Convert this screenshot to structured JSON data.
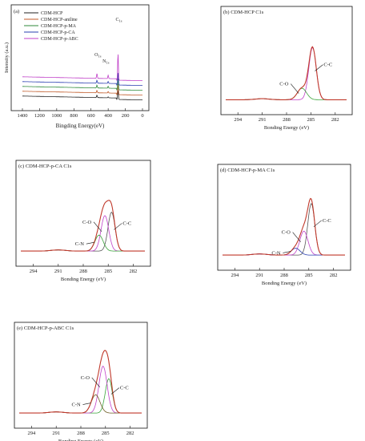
{
  "figure": {
    "chart_data": [
      {
        "type": "line",
        "panel_label": "(a)",
        "title": "",
        "xlabel": "Bingding Energy(eV)",
        "ylabel": "Intensity (a.u.)",
        "x_ticks": [
          "1400",
          "1200",
          "1000",
          "800",
          "600",
          "400",
          "200",
          "0"
        ],
        "xlim": [
          1400,
          0
        ],
        "x_reversed": true,
        "series": [
          {
            "name": "CDM-HCP",
            "color": "#222222",
            "baseline": 0.0,
            "peaks": [
              {
                "x": 285,
                "h": 0.2
              },
              {
                "x": 531,
                "h": 0.05
              },
              {
                "x": 400,
                "h": 0.02
              }
            ]
          },
          {
            "name": "CDM-HCP-aniline",
            "color": "#c05a28",
            "baseline": 0.1,
            "peaks": [
              {
                "x": 285,
                "h": 0.22
              },
              {
                "x": 531,
                "h": 0.05
              },
              {
                "x": 400,
                "h": 0.03
              }
            ]
          },
          {
            "name": "CDM-HCP-p-MA",
            "color": "#2f8a3a",
            "baseline": 0.2,
            "peaks": [
              {
                "x": 285,
                "h": 0.24
              },
              {
                "x": 531,
                "h": 0.06
              },
              {
                "x": 400,
                "h": 0.04
              }
            ]
          },
          {
            "name": "CDM-HCP-p-CA",
            "color": "#2a3fb0",
            "baseline": 0.3,
            "peaks": [
              {
                "x": 285,
                "h": 0.26
              },
              {
                "x": 531,
                "h": 0.06
              },
              {
                "x": 400,
                "h": 0.04
              }
            ]
          },
          {
            "name": "CDM-HCP-p-ABC",
            "color": "#c040c8",
            "baseline": 0.4,
            "peaks": [
              {
                "x": 285,
                "h": 0.55
              },
              {
                "x": 531,
                "h": 0.1
              },
              {
                "x": 400,
                "h": 0.07
              }
            ]
          }
        ],
        "annotations": [
          {
            "text": "C",
            "sub": "1s",
            "x": 285
          },
          {
            "text": "O",
            "sub": "1s",
            "x": 531
          },
          {
            "text": "N",
            "sub": "1s",
            "x": 400
          }
        ]
      },
      {
        "type": "line",
        "panel_label": "(b)",
        "title": "CDM-HCP  C1s",
        "xlabel": "Bonding Energy (eV)",
        "x_ticks": [
          "294",
          "291",
          "288",
          "285",
          "282"
        ],
        "xlim": [
          295.5,
          280.5
        ],
        "x_reversed": true,
        "components": [
          {
            "name": "C-C",
            "center": 284.8,
            "height": 1.0,
            "width": 0.65,
            "color": "#c040c8"
          },
          {
            "name": "C-O",
            "center": 286.1,
            "height": 0.22,
            "width": 0.8,
            "color": "#3aa33a"
          }
        ],
        "envelope_color": "#c0392b",
        "labels": [
          "C-O",
          "C-C"
        ]
      },
      {
        "type": "line",
        "panel_label": "(c)",
        "title": "CDM-HCP-p-CA  C1s",
        "xlabel": "Bonding Energy (eV)",
        "x_ticks": [
          "294",
          "291",
          "288",
          "285",
          "282"
        ],
        "xlim": [
          295.5,
          280.5
        ],
        "x_reversed": true,
        "components": [
          {
            "name": "C-C",
            "center": 284.6,
            "height": 0.68,
            "width": 0.6,
            "color": "#555555"
          },
          {
            "name": "C-O",
            "center": 285.4,
            "height": 0.62,
            "width": 0.65,
            "color": "#c040c8"
          },
          {
            "name": "C-N",
            "center": 286.1,
            "height": 0.28,
            "width": 0.7,
            "color": "#3aa33a"
          }
        ],
        "envelope_color": "#c0392b",
        "labels": [
          "C-O",
          "C-C",
          "C-N"
        ]
      },
      {
        "type": "line",
        "panel_label": "(d)",
        "title": "CDM-HCP-p-MA  C1s",
        "xlabel": "Bonding Energy (eV)",
        "x_ticks": [
          "294",
          "291",
          "288",
          "285",
          "282"
        ],
        "xlim": [
          295.5,
          280.5
        ],
        "x_reversed": true,
        "components": [
          {
            "name": "C-C",
            "center": 284.7,
            "height": 0.9,
            "width": 0.6,
            "color": "#555555"
          },
          {
            "name": "C-O",
            "center": 285.6,
            "height": 0.42,
            "width": 0.7,
            "color": "#c040c8"
          },
          {
            "name": "C-N",
            "center": 286.6,
            "height": 0.12,
            "width": 0.75,
            "color": "#2a3fb0"
          }
        ],
        "envelope_color": "#c0392b",
        "labels": [
          "C-O",
          "C-C",
          "C-N"
        ]
      },
      {
        "type": "line",
        "panel_label": "(e)",
        "title": "CDM-HCP-p-ABC  C1s",
        "xlabel": "Bonding Energy (eV)",
        "x_ticks": [
          "294",
          "291",
          "288",
          "285",
          "282"
        ],
        "xlim": [
          295.5,
          280.5
        ],
        "x_reversed": true,
        "components": [
          {
            "name": "C-C",
            "center": 284.6,
            "height": 0.6,
            "width": 0.6,
            "color": "#3aa33a"
          },
          {
            "name": "C-O",
            "center": 285.3,
            "height": 0.82,
            "width": 0.7,
            "color": "#c040c8"
          },
          {
            "name": "C-N",
            "center": 286.2,
            "height": 0.32,
            "width": 0.75,
            "color": "#6b5a20"
          }
        ],
        "envelope_color": "#c0392b",
        "labels": [
          "C-O",
          "C-C",
          "C-N"
        ]
      }
    ]
  }
}
